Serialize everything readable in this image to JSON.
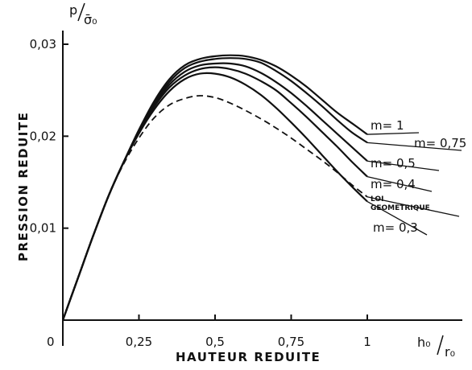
{
  "chart_data": {
    "type": "line",
    "xlabel": "HAUTEUR   REDUITE",
    "ylabel": "PRESSION   REDUITE",
    "x_unit": {
      "num": "h₀",
      "den": "r₀"
    },
    "y_unit": {
      "num": "p",
      "den": "σ̄₀"
    },
    "origin_label": "0",
    "x_tick_labels": [
      "0,25",
      "0,5",
      "0,75",
      "1"
    ],
    "y_tick_labels": [
      "0,01",
      "0,02",
      "0,03"
    ],
    "xlim": [
      0,
      1.15
    ],
    "ylim": [
      0,
      0.0315
    ],
    "x": [
      0,
      0.05,
      0.1,
      0.15,
      0.2,
      0.25,
      0.3,
      0.35,
      0.4,
      0.45,
      0.5,
      0.55,
      0.6,
      0.65,
      0.7,
      0.75,
      0.8,
      0.85,
      0.9,
      0.95,
      1.0
    ],
    "series": [
      {
        "name": "m= 1",
        "dash": false,
        "values": [
          0,
          0.0046,
          0.0092,
          0.0135,
          0.0172,
          0.0207,
          0.0238,
          0.0262,
          0.0277,
          0.0284,
          0.0287,
          0.0288,
          0.0287,
          0.0283,
          0.0276,
          0.0266,
          0.0254,
          0.024,
          0.0226,
          0.0214,
          0.0202
        ]
      },
      {
        "name": "m= 0,75",
        "dash": false,
        "values": [
          0,
          0.0046,
          0.0092,
          0.0135,
          0.0172,
          0.0206,
          0.0236,
          0.0259,
          0.0274,
          0.0281,
          0.0284,
          0.0285,
          0.0284,
          0.028,
          0.0271,
          0.026,
          0.0247,
          0.0233,
          0.0218,
          0.0204,
          0.0193
        ]
      },
      {
        "name": "m= 0,5",
        "dash": false,
        "values": [
          0,
          0.0046,
          0.0092,
          0.0135,
          0.0172,
          0.0205,
          0.0234,
          0.0256,
          0.027,
          0.0277,
          0.0279,
          0.0279,
          0.0276,
          0.0269,
          0.0259,
          0.0247,
          0.0233,
          0.0218,
          0.0203,
          0.0188,
          0.0173
        ]
      },
      {
        "name": "m= 0,4",
        "dash": false,
        "values": [
          0,
          0.0046,
          0.0092,
          0.0135,
          0.0172,
          0.0204,
          0.0232,
          0.0253,
          0.0266,
          0.0273,
          0.0275,
          0.0273,
          0.0268,
          0.026,
          0.025,
          0.0236,
          0.0221,
          0.0205,
          0.0189,
          0.0172,
          0.0156
        ]
      },
      {
        "name": "m= 0,3",
        "dash": false,
        "values": [
          0,
          0.0046,
          0.0092,
          0.0135,
          0.0172,
          0.0203,
          0.0229,
          0.0249,
          0.0262,
          0.0268,
          0.0268,
          0.0264,
          0.0256,
          0.0245,
          0.0231,
          0.0215,
          0.0198,
          0.018,
          0.0162,
          0.0145,
          0.0129
        ]
      },
      {
        "name": "LOI GEOMETRIQUE",
        "dash": true,
        "values": [
          0,
          0.0046,
          0.0092,
          0.0135,
          0.017,
          0.0198,
          0.022,
          0.0234,
          0.0241,
          0.0244,
          0.0242,
          0.0236,
          0.0228,
          0.0219,
          0.0209,
          0.0198,
          0.0186,
          0.0174,
          0.0161,
          0.0147,
          0.0134
        ]
      }
    ],
    "grid": false,
    "legend": "line labels at right ends"
  }
}
